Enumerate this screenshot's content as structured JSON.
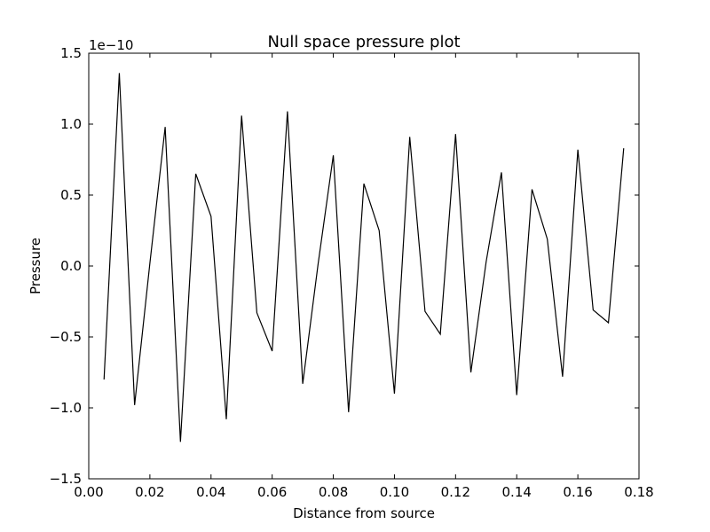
{
  "chart_data": {
    "type": "line",
    "title": "Null space pressure plot",
    "xlabel": "Distance from source",
    "ylabel": "Pressure",
    "y_offset_label": "1e−10",
    "xlim": [
      0.0,
      0.18
    ],
    "ylim": [
      -1.5,
      1.5
    ],
    "grid": false,
    "line_color": "#000000",
    "x_ticks": [
      0.0,
      0.02,
      0.04,
      0.06,
      0.08,
      0.1,
      0.12,
      0.14,
      0.16,
      0.18
    ],
    "x_tick_labels": [
      "0.00",
      "0.02",
      "0.04",
      "0.06",
      "0.08",
      "0.10",
      "0.12",
      "0.14",
      "0.16",
      "0.18"
    ],
    "y_ticks": [
      -1.5,
      -1.0,
      -0.5,
      0.0,
      0.5,
      1.0,
      1.5
    ],
    "y_tick_labels": [
      "−1.5",
      "−1.0",
      "−0.5",
      "0.0",
      "0.5",
      "1.0",
      "1.5"
    ],
    "series": [
      {
        "x": [
          0.005,
          0.01,
          0.015,
          0.02,
          0.025,
          0.03,
          0.035,
          0.04,
          0.045,
          0.05,
          0.055,
          0.06,
          0.065,
          0.07,
          0.075,
          0.08,
          0.085,
          0.09,
          0.095,
          0.1,
          0.105,
          0.11,
          0.115,
          0.12,
          0.125,
          0.13,
          0.135,
          0.14,
          0.145,
          0.15,
          0.155,
          0.16,
          0.165,
          0.17,
          0.175
        ],
        "values": [
          -0.8,
          1.36,
          -0.98,
          0.02,
          0.98,
          -1.24,
          0.65,
          0.35,
          -1.08,
          1.06,
          -0.33,
          -0.6,
          1.09,
          -0.83,
          0.01,
          0.78,
          -1.03,
          0.58,
          0.25,
          -0.9,
          0.91,
          -0.32,
          -0.48,
          0.93,
          -0.75,
          0.03,
          0.66,
          -0.91,
          0.54,
          0.19,
          -0.78,
          0.82,
          -0.31,
          -0.4,
          0.83
        ]
      }
    ]
  }
}
